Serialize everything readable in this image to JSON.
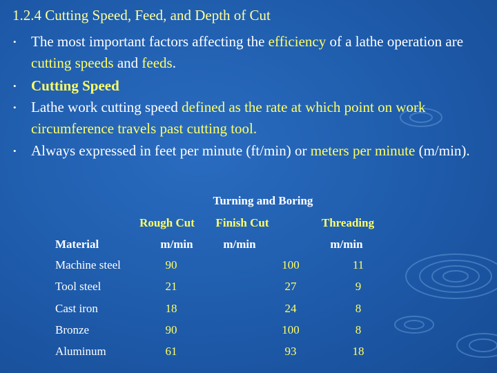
{
  "title": "1.2.4 Cutting Speed, Feed, and Depth of Cut",
  "title_color": "#ffff99",
  "bullets": [
    {
      "segments": [
        {
          "text": "The most important factors affecting the ",
          "color": "#ffffff"
        },
        {
          "text": "efficiency",
          "color": "#ffff66"
        },
        {
          "text": " of a lathe operation are ",
          "color": "#ffffff"
        },
        {
          "text": "cutting speeds",
          "color": "#ffff66"
        },
        {
          "text": " and ",
          "color": "#ffffff"
        },
        {
          "text": "feeds",
          "color": "#ffff66"
        },
        {
          "text": ".",
          "color": "#ffffff"
        }
      ]
    },
    {
      "segments": [
        {
          "text": "Cutting Speed",
          "color": "#ffff66",
          "bold": true
        }
      ]
    },
    {
      "segments": [
        {
          "text": "Lathe work cutting speed ",
          "color": "#ffffff"
        },
        {
          "text": "defined as the rate at which point on work circumference travels past cutting tool.",
          "color": "#ffff66"
        }
      ]
    },
    {
      "segments": [
        {
          "text": "Always expressed in feet per minute (ft/min) or ",
          "color": "#ffffff"
        },
        {
          "text": "meters per minute",
          "color": "#ffff66"
        },
        {
          "text": " (m/min).",
          "color": "#ffffff"
        }
      ]
    }
  ],
  "table": {
    "group_header": "Turning and Boring",
    "column_headers": [
      "Rough Cut",
      "Finish Cut",
      "Threading"
    ],
    "unit_row": [
      "Material",
      "m/min",
      "m/min",
      "m/min"
    ],
    "rows": [
      [
        "Machine steel",
        90,
        100,
        11
      ],
      [
        "Tool steel",
        21,
        27,
        9
      ],
      [
        "Cast iron",
        18,
        24,
        8
      ],
      [
        "Bronze",
        90,
        100,
        8
      ],
      [
        "Aluminum",
        61,
        93,
        18
      ]
    ]
  }
}
